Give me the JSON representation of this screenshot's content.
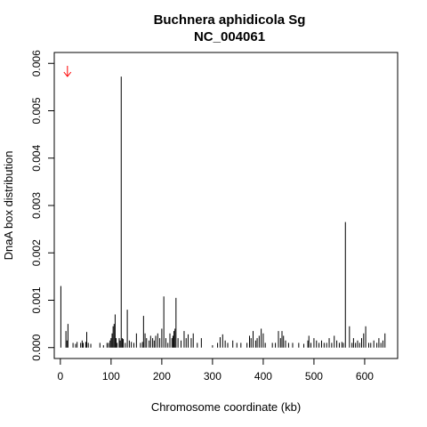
{
  "chart_data": {
    "type": "bar",
    "title": "Buchnera aphidicola Sg",
    "subtitle": "NC_004061",
    "xlabel": "Chromosome coordinate (kb)",
    "ylabel": "DnaA box distribution",
    "xlim": [
      -12,
      665
    ],
    "ylim": [
      -0.00023,
      0.00623
    ],
    "x_ticks": [
      0,
      100,
      200,
      300,
      400,
      500,
      600
    ],
    "y_ticks": [
      0.0,
      0.001,
      0.002,
      0.003,
      0.004,
      0.005,
      0.006
    ],
    "x_tick_labels": [
      "0",
      "100",
      "200",
      "300",
      "400",
      "500",
      "600"
    ],
    "y_tick_labels": [
      "0.000",
      "0.001",
      "0.002",
      "0.003",
      "0.004",
      "0.005",
      "0.006"
    ],
    "marker": {
      "x": 14,
      "symbol": "down-arrow",
      "color": "#ff0000"
    },
    "series_color": "#000000",
    "x": [
      1,
      11,
      13,
      15,
      25,
      30,
      33,
      40,
      43,
      45,
      50,
      52,
      55,
      60,
      78,
      85,
      92,
      95,
      98,
      100,
      102,
      104,
      106,
      108,
      110,
      112,
      116,
      118,
      120,
      122,
      124,
      128,
      132,
      136,
      140,
      145,
      150,
      158,
      162,
      164,
      167,
      170,
      175,
      178,
      182,
      185,
      188,
      192,
      196,
      200,
      204,
      208,
      212,
      216,
      220,
      222,
      224,
      226,
      228,
      232,
      238,
      244,
      248,
      252,
      258,
      262,
      270,
      278,
      300,
      310,
      315,
      320,
      325,
      330,
      340,
      348,
      356,
      368,
      373,
      376,
      380,
      385,
      388,
      392,
      396,
      400,
      404,
      418,
      424,
      430,
      434,
      437,
      440,
      444,
      450,
      458,
      470,
      480,
      488,
      490,
      494,
      500,
      505,
      510,
      515,
      520,
      525,
      530,
      535,
      540,
      545,
      550,
      555,
      558,
      562,
      570,
      575,
      578,
      582,
      586,
      590,
      594,
      598,
      602,
      608,
      612,
      618,
      624,
      628,
      632,
      636,
      640
    ],
    "values": [
      0.0013,
      0.00035,
      0.00015,
      0.0005,
      0.0001,
      8e-05,
      0.00012,
      0.0001,
      0.00015,
      0.0001,
      0.00012,
      0.00033,
      0.0001,
      8e-05,
      0.0001,
      5e-05,
      0.0001,
      0.0001,
      0.00015,
      0.0002,
      0.0003,
      0.00045,
      0.0005,
      0.0007,
      0.0002,
      0.0001,
      0.0002,
      0.00015,
      0.00572,
      0.0002,
      0.00018,
      0.0001,
      0.0008,
      0.00015,
      0.00012,
      0.0001,
      0.0003,
      0.0001,
      0.00012,
      0.00067,
      0.0003,
      0.0002,
      0.00015,
      0.00025,
      0.0002,
      0.00015,
      0.00025,
      0.0003,
      0.0002,
      0.0004,
      0.00108,
      0.0002,
      0.0001,
      0.0003,
      0.0002,
      0.00025,
      0.00035,
      0.0004,
      0.00105,
      0.0002,
      0.00015,
      0.00035,
      0.0002,
      0.00028,
      0.0002,
      0.0003,
      0.0001,
      0.0002,
      5e-05,
      0.0001,
      0.00022,
      0.00028,
      0.00015,
      0.0001,
      0.00015,
      0.0001,
      0.0001,
      0.0001,
      0.00025,
      0.0002,
      0.00035,
      0.00015,
      0.0002,
      0.00025,
      0.0004,
      0.0003,
      0.0001,
      0.0001,
      0.0001,
      0.00035,
      0.0002,
      0.00035,
      0.00025,
      0.00015,
      0.0001,
      0.0001,
      0.0001,
      8e-05,
      0.00015,
      0.00025,
      0.0001,
      0.0002,
      0.00015,
      0.0001,
      0.00015,
      0.0001,
      0.0001,
      0.0002,
      0.0001,
      0.00025,
      0.00015,
      0.0001,
      0.00012,
      0.0001,
      0.00265,
      0.00045,
      0.0001,
      0.0002,
      0.0001,
      0.00015,
      0.0001,
      0.0002,
      0.0003,
      0.00045,
      0.0001,
      0.0001,
      0.00015,
      0.0001,
      0.0002,
      0.0001,
      0.00015,
      0.0003
    ]
  }
}
